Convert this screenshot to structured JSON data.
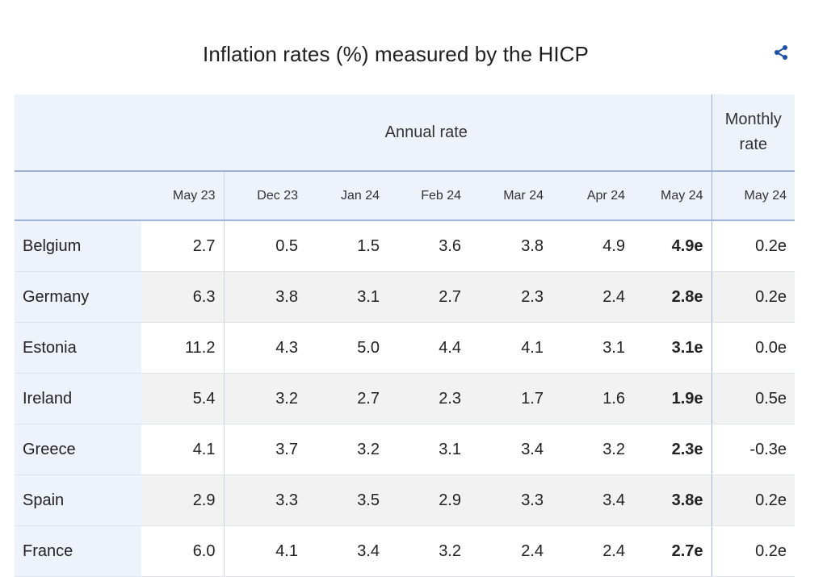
{
  "title": "Inflation rates (%) measured by the HICP",
  "icons": {
    "share": "share-icon"
  },
  "colors": {
    "header_bg": "#eef2fa",
    "share_blue": "#1f4fa8",
    "rule": "#9db2d6"
  },
  "groups": {
    "annual": "Annual rate",
    "monthly": "Monthly rate"
  },
  "columns": [
    "May 23",
    "Dec 23",
    "Jan 24",
    "Feb 24",
    "Mar 24",
    "Apr 24",
    "May 24",
    "May 24"
  ],
  "rows": [
    {
      "country": "Belgium",
      "values": [
        "2.7",
        "0.5",
        "1.5",
        "3.6",
        "3.8",
        "4.9",
        "4.9e",
        "0.2e"
      ]
    },
    {
      "country": "Germany",
      "values": [
        "6.3",
        "3.8",
        "3.1",
        "2.7",
        "2.3",
        "2.4",
        "2.8e",
        "0.2e"
      ]
    },
    {
      "country": "Estonia",
      "values": [
        "11.2",
        "4.3",
        "5.0",
        "4.4",
        "4.1",
        "3.1",
        "3.1e",
        "0.0e"
      ]
    },
    {
      "country": "Ireland",
      "values": [
        "5.4",
        "3.2",
        "2.7",
        "2.3",
        "1.7",
        "1.6",
        "1.9e",
        "0.5e"
      ]
    },
    {
      "country": "Greece",
      "values": [
        "4.1",
        "3.7",
        "3.2",
        "3.1",
        "3.4",
        "3.2",
        "2.3e",
        "-0.3e"
      ]
    },
    {
      "country": "Spain",
      "values": [
        "2.9",
        "3.3",
        "3.5",
        "2.9",
        "3.3",
        "3.4",
        "3.8e",
        "0.2e"
      ]
    },
    {
      "country": "France",
      "values": [
        "6.0",
        "4.1",
        "3.4",
        "3.2",
        "2.4",
        "2.4",
        "2.7e",
        "0.2e"
      ]
    }
  ]
}
